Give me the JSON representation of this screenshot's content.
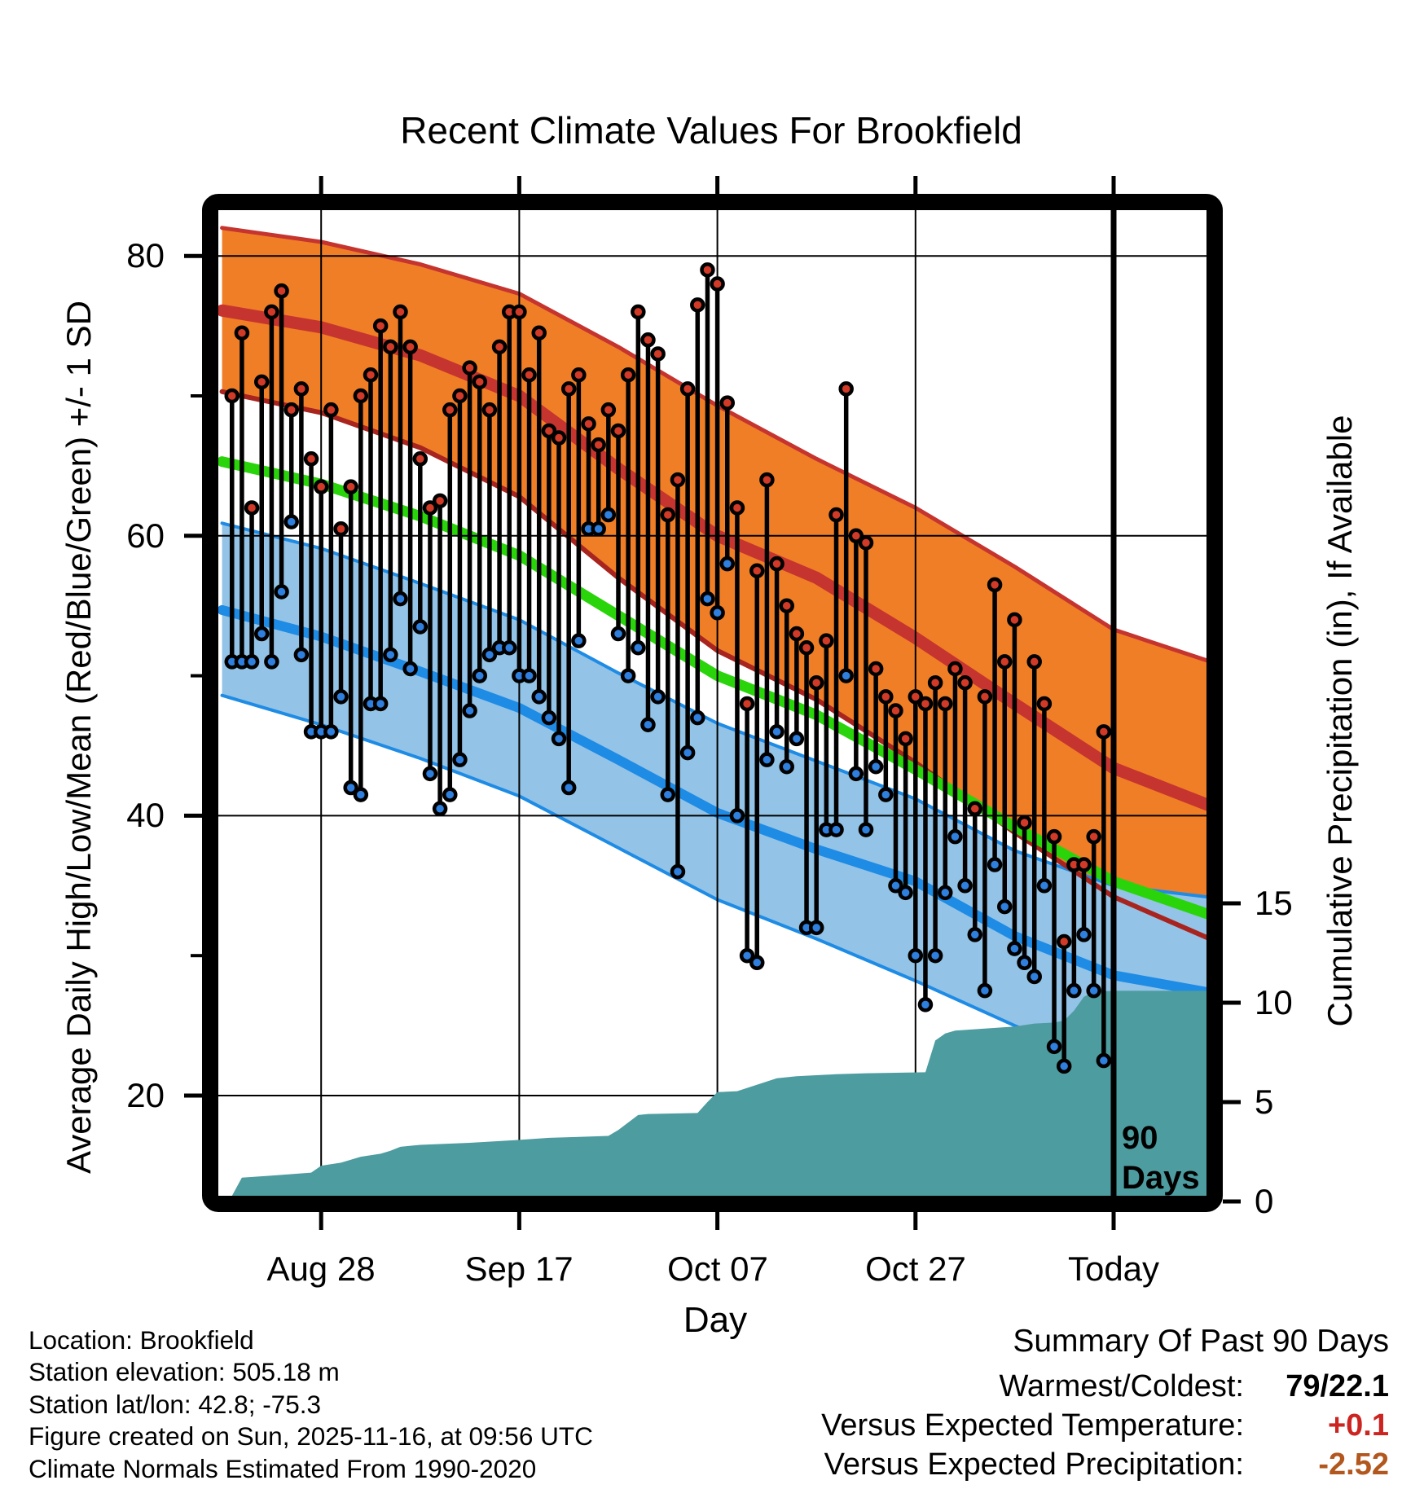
{
  "title": "Recent Climate Values For Brookfield",
  "axes": {
    "x": {
      "label": "Day",
      "tick_labels": [
        "Aug 28",
        "Sep 17",
        "Oct 07",
        "Oct 27",
        "Today"
      ],
      "tick_days": [
        10,
        30,
        50,
        70,
        90
      ]
    },
    "y_left": {
      "label": "Average Daily High/Low/Mean (Red/Blue/Green) +/- 1 SD",
      "tick_labels": [
        "80",
        "60",
        "40",
        "20"
      ],
      "tick_values": [
        80,
        60,
        40,
        20
      ],
      "minor_tick_values": [
        70,
        50,
        30
      ]
    },
    "y_right": {
      "label": "Cumulative Precipitation (in), If Available",
      "tick_labels": [
        "15",
        "10",
        "5",
        "0"
      ],
      "tick_values": [
        15,
        10,
        5,
        0
      ]
    }
  },
  "chart_data": {
    "type": "line",
    "subtype": "climate-normals-bands with daily high/low stems and cumulative precipitation area",
    "title": "Recent Climate Values For Brookfield",
    "xlabel": "Day",
    "ylabel": "Average Daily High/Low/Mean (Red/Blue/Green) +/- 1 SD",
    "ylabel_right": "Cumulative Precipitation (in), If Available",
    "temp_axis_range_f": [
      12.8,
      83.3
    ],
    "precip_axis_range_in": [
      0,
      15
    ],
    "day_axis_range": [
      0,
      99.4
    ],
    "today_day": 90,
    "normals": {
      "days": [
        0,
        10,
        20,
        30,
        40,
        50,
        60,
        70,
        80,
        90,
        99.4
      ],
      "high_upper": [
        82.0,
        81.0,
        79.4,
        77.3,
        73.5,
        69.3,
        65.5,
        62.0,
        57.8,
        53.3,
        51.1
      ],
      "high_mean": [
        76.1,
        74.9,
        72.9,
        70.0,
        64.8,
        60.0,
        57.0,
        52.7,
        48.0,
        43.4,
        40.8
      ],
      "high_lower": [
        70.3,
        68.8,
        66.3,
        62.8,
        57.0,
        51.8,
        48.3,
        43.8,
        38.8,
        34.2,
        31.3
      ],
      "mean": [
        65.3,
        63.7,
        61.4,
        58.6,
        54.3,
        50.0,
        47.2,
        43.3,
        39.2,
        35.3,
        33.0
      ],
      "low_upper": [
        60.9,
        59.1,
        56.6,
        54.0,
        50.2,
        46.6,
        43.9,
        41.2,
        37.5,
        35.0,
        34.2
      ],
      "low_mean": [
        54.7,
        52.8,
        50.3,
        47.7,
        44.0,
        40.2,
        37.6,
        35.3,
        31.4,
        28.6,
        27.4
      ],
      "low_lower": [
        48.6,
        46.5,
        44.1,
        41.4,
        37.7,
        34.0,
        31.2,
        28.2,
        25.0,
        22.0,
        20.6
      ]
    },
    "daily": {
      "first_day": 1,
      "high_f": [
        70,
        74.5,
        62,
        71,
        76,
        77.5,
        69,
        70.5,
        65.5,
        63.5,
        69,
        60.5,
        63.5,
        70,
        71.5,
        75,
        73.5,
        76,
        73.5,
        65.5,
        62,
        62.5,
        69,
        70,
        72,
        71,
        69,
        73.5,
        76,
        76,
        71.5,
        74.5,
        67.5,
        67,
        70.5,
        71.5,
        68,
        66.5,
        69,
        67.5,
        71.5,
        76,
        74,
        73,
        61.5,
        64,
        70.5,
        76.5,
        79,
        78,
        69.5,
        62,
        48,
        57.5,
        64,
        58,
        55,
        53,
        52,
        49.5,
        52.5,
        61.5,
        70.5,
        60,
        59.5,
        50.5,
        48.5,
        47.5,
        45.5,
        48.5,
        48,
        49.5,
        48,
        50.5,
        49.5,
        40.5,
        48.5,
        56.5,
        51,
        54,
        39.5,
        51,
        48,
        38.5,
        31,
        36.5,
        36.5,
        38.5,
        46
      ],
      "low_f": [
        51,
        51,
        51,
        53,
        51,
        56,
        61,
        51.5,
        46,
        46,
        46,
        48.5,
        42,
        41.5,
        48,
        48,
        51.5,
        55.5,
        50.5,
        53.5,
        43,
        40.5,
        41.5,
        44,
        47.5,
        50,
        51.5,
        52,
        52,
        50,
        50,
        48.5,
        47,
        45.5,
        42,
        52.5,
        60.5,
        60.5,
        61.5,
        53,
        50,
        52,
        46.5,
        48.5,
        41.5,
        36,
        44.5,
        47,
        55.5,
        54.5,
        58,
        40,
        30,
        29.5,
        44,
        46,
        43.5,
        45.5,
        32,
        32,
        39,
        39,
        50,
        43,
        39,
        43.5,
        41.5,
        35,
        34.5,
        30,
        26.5,
        30,
        34.5,
        38.5,
        35,
        31.5,
        27.5,
        36.5,
        33.5,
        30.5,
        29.5,
        28.5,
        35,
        23.5,
        22.1,
        27.5,
        31.5,
        27.5,
        22.5
      ]
    },
    "precipitation_cumulative_in": {
      "points": [
        [
          0,
          0
        ],
        [
          1,
          0.1
        ],
        [
          2,
          1.2
        ],
        [
          5,
          1.3
        ],
        [
          9,
          1.45
        ],
        [
          10,
          1.8
        ],
        [
          12,
          1.95
        ],
        [
          13,
          2.1
        ],
        [
          14,
          2.25
        ],
        [
          16,
          2.4
        ],
        [
          17,
          2.55
        ],
        [
          18,
          2.75
        ],
        [
          20,
          2.85
        ],
        [
          25,
          2.95
        ],
        [
          30,
          3.1
        ],
        [
          33,
          3.2
        ],
        [
          36,
          3.25
        ],
        [
          39,
          3.3
        ],
        [
          40,
          3.6
        ],
        [
          42,
          4.35
        ],
        [
          43,
          4.4
        ],
        [
          48,
          4.45
        ],
        [
          49,
          5.0
        ],
        [
          50,
          5.5
        ],
        [
          52,
          5.55
        ],
        [
          56,
          6.2
        ],
        [
          58,
          6.3
        ],
        [
          62,
          6.4
        ],
        [
          65,
          6.45
        ],
        [
          71,
          6.5
        ],
        [
          72,
          8.1
        ],
        [
          73,
          8.45
        ],
        [
          74,
          8.6
        ],
        [
          77,
          8.7
        ],
        [
          80,
          8.8
        ],
        [
          82,
          8.95
        ],
        [
          84,
          9.0
        ],
        [
          85,
          9.1
        ],
        [
          86,
          9.6
        ],
        [
          87,
          10.3
        ],
        [
          88,
          10.55
        ],
        [
          90,
          10.6
        ],
        [
          99.4,
          10.6
        ]
      ]
    },
    "annotation_90_days": {
      "day": 90,
      "label_lines": [
        "90",
        "Days"
      ]
    }
  },
  "footer_left": {
    "lines": [
      "Location: Brookfield",
      "Station elevation: 505.18 m",
      "Station lat/lon: 42.8; -75.3",
      "Figure created on Sun, 2025-11-16, at 09:56 UTC",
      "Climate Normals Estimated From 1990-2020"
    ]
  },
  "summary": {
    "title": "Summary Of Past 90 Days",
    "rows": [
      {
        "label": "Warmest/Coldest:",
        "value": "79/22.1",
        "value_color": "#000000"
      },
      {
        "label": "Versus Expected Temperature:",
        "value": "+0.1",
        "value_color": "#CC2420"
      },
      {
        "label": "Versus Expected Precipitation:",
        "value": "-2.52",
        "value_color": "#B2571E"
      }
    ]
  },
  "colors": {
    "high_band": "#F07E26",
    "high_line": "#C5342F",
    "high_line_lower": "#A8241F",
    "mean_line": "#2AD40A",
    "low_band": "#93C3E6",
    "low_line": "#1E8BE5",
    "red_dot": "#D23A28",
    "blue_dot": "#2E7FDE",
    "stem": "#000000",
    "precip_fill": "#4D9CA0",
    "grid": "#000000",
    "frame": "#000000"
  }
}
